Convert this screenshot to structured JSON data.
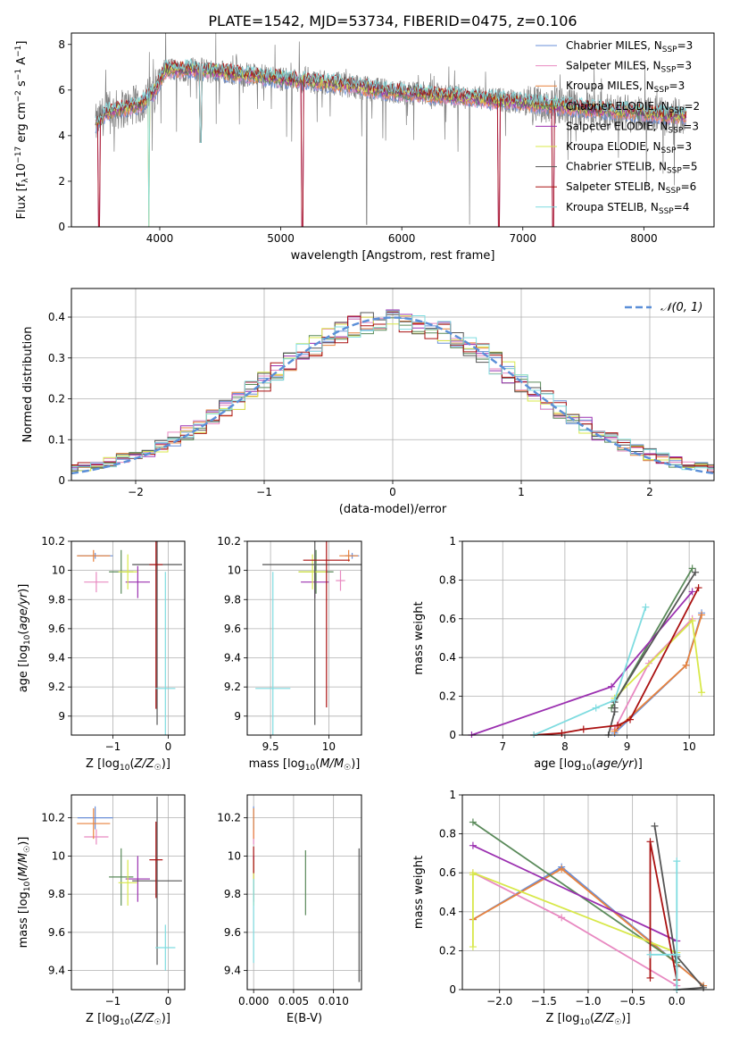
{
  "figure": {
    "title": "PLATE=1542, MJD=53734, FIBERID=0475, z=0.106"
  },
  "colors": {
    "Chabrier MILES": "#6a8fd8",
    "Salpeter MILES": "#e889c1",
    "Kroupa MILES": "#e8823c",
    "Chabrier ELODIE": "#5a8a5a",
    "Salpeter ELODIE": "#9b30b0",
    "Kroupa ELODIE": "#d8e84a",
    "Chabrier STELIB": "#555555",
    "Salpeter STELIB": "#aa1111",
    "Kroupa STELIB": "#7fdce0",
    "observed": "#808080",
    "normal": "#5b8fd8"
  },
  "chart_data": [
    {
      "id": "spectrum",
      "type": "line",
      "xlabel": "wavelength [Angstrom, rest frame]",
      "ylabel": "Flux [f_λ10^-17 erg cm^-2 s^-1 A^-1]",
      "xlim": [
        3270,
        8580
      ],
      "ylim": [
        0,
        8.5
      ],
      "xticks": [
        4000,
        5000,
        6000,
        7000,
        8000
      ],
      "yticks": [
        0,
        2,
        4,
        6,
        8
      ],
      "grid": false,
      "legend_position": "right",
      "legend": [
        {
          "name": "Chabrier MILES",
          "nssp": "3"
        },
        {
          "name": "Salpeter MILES",
          "nssp": "3"
        },
        {
          "name": "Kroupa MILES",
          "nssp": "3"
        },
        {
          "name": "Chabrier ELODIE",
          "nssp": "2"
        },
        {
          "name": "Salpeter ELODIE",
          "nssp": "3"
        },
        {
          "name": "Kroupa ELODIE",
          "nssp": "3"
        },
        {
          "name": "Chabrier STELIB",
          "nssp": "5"
        },
        {
          "name": "Salpeter STELIB",
          "nssp": "6"
        },
        {
          "name": "Kroupa STELIB",
          "nssp": "4"
        }
      ],
      "continuum": [
        [
          3480,
          4.5
        ],
        [
          3550,
          5.0
        ],
        [
          3700,
          5.2
        ],
        [
          3850,
          5.4
        ],
        [
          3950,
          5.9
        ],
        [
          4050,
          6.9
        ],
        [
          4300,
          6.9
        ],
        [
          4600,
          6.75
        ],
        [
          4900,
          6.55
        ],
        [
          5200,
          6.4
        ],
        [
          5500,
          6.25
        ],
        [
          5800,
          6.0
        ],
        [
          6100,
          5.85
        ],
        [
          6400,
          5.75
        ],
        [
          6700,
          5.6
        ],
        [
          7000,
          5.45
        ],
        [
          7300,
          5.3
        ],
        [
          7600,
          5.15
        ],
        [
          7900,
          5.05
        ],
        [
          8200,
          4.9
        ],
        [
          8350,
          4.85
        ]
      ],
      "model_dips": [
        [
          3500,
          0
        ],
        [
          3910,
          0
        ],
        [
          4340,
          3.7
        ],
        [
          5180,
          0
        ],
        [
          6800,
          0
        ],
        [
          7250,
          0
        ]
      ]
    },
    {
      "id": "residuals",
      "type": "histogram",
      "xlabel": "(data-model)/error",
      "ylabel": "Normed distribution",
      "xlim": [
        -2.5,
        2.5
      ],
      "ylim": [
        0,
        0.47
      ],
      "xticks": [
        -2,
        -1,
        0,
        1,
        2
      ],
      "yticks": [
        0.0,
        0.1,
        0.2,
        0.3,
        0.4
      ],
      "grid": true,
      "legend_position": "top-right",
      "legend": "𝒩(0, 1)",
      "bin_width": 0.1
    },
    {
      "id": "age_vs_z",
      "type": "errorbar",
      "xlabel": "Z [log10(Z/Z⊙)]",
      "ylabel": "age [log10(age/yr)]",
      "xlim": [
        -1.75,
        0.3
      ],
      "ylim": [
        8.87,
        10.2
      ],
      "xticks": [
        -1,
        0
      ],
      "yticks": [
        9.0,
        9.2,
        9.4,
        9.6,
        9.8,
        10.0,
        10.2
      ],
      "grid": true,
      "points": [
        {
          "model": "Chabrier MILES",
          "x": -1.32,
          "xe": 0.32,
          "y": 10.1,
          "ye": 0.02
        },
        {
          "model": "Salpeter MILES",
          "x": -1.3,
          "xe": 0.22,
          "y": 9.92,
          "ye": 0.07
        },
        {
          "model": "Kroupa MILES",
          "x": -1.35,
          "xe": 0.3,
          "y": 10.1,
          "ye": 0.04
        },
        {
          "model": "Chabrier ELODIE",
          "x": -0.85,
          "xe": 0.22,
          "y": 9.99,
          "ye": 0.15
        },
        {
          "model": "Salpeter ELODIE",
          "x": -0.55,
          "xe": 0.22,
          "y": 9.92,
          "ye": 0.11
        },
        {
          "model": "Kroupa ELODIE",
          "x": -0.73,
          "xe": 0.17,
          "y": 9.99,
          "ye": 0.12
        },
        {
          "model": "Chabrier STELIB",
          "x": -0.2,
          "xe": 0.45,
          "y": 10.04,
          "ye": 1.1
        },
        {
          "model": "Salpeter STELIB",
          "x": -0.22,
          "xe": 0.12,
          "y": 10.04,
          "ye": 0.99
        },
        {
          "model": "Kroupa STELIB",
          "x": -0.05,
          "xe": 0.18,
          "y": 9.19,
          "ye": 0.8
        }
      ]
    },
    {
      "id": "age_vs_mass",
      "type": "errorbar",
      "xlabel": "mass [log10(M/M⊙)]",
      "ylabel": "",
      "xlim": [
        9.3,
        10.28
      ],
      "ylim": [
        8.87,
        10.2
      ],
      "xticks": [
        9.5,
        10.0
      ],
      "yticks": [
        9.0,
        9.2,
        9.4,
        9.6,
        9.8,
        10.0,
        10.2
      ],
      "grid": true,
      "points": [
        {
          "model": "Chabrier MILES",
          "x": 10.2,
          "xe": 0.06,
          "y": 10.1,
          "ye": 0.02
        },
        {
          "model": "Salpeter MILES",
          "x": 10.1,
          "xe": 0.04,
          "y": 9.93,
          "ye": 0.07
        },
        {
          "model": "Kroupa MILES",
          "x": 10.17,
          "xe": 0.08,
          "y": 10.1,
          "ye": 0.04
        },
        {
          "model": "Chabrier ELODIE",
          "x": 9.89,
          "xe": 0.15,
          "y": 9.99,
          "ye": 0.15
        },
        {
          "model": "Salpeter ELODIE",
          "x": 9.88,
          "xe": 0.12,
          "y": 9.92,
          "ye": 0.11
        },
        {
          "model": "Kroupa ELODIE",
          "x": 9.86,
          "xe": 0.12,
          "y": 9.99,
          "ye": 0.12
        },
        {
          "model": "Chabrier STELIB",
          "x": 9.88,
          "xe": 0.45,
          "y": 10.04,
          "ye": 1.1
        },
        {
          "model": "Salpeter STELIB",
          "x": 9.98,
          "xe": 0.2,
          "y": 10.07,
          "ye": 1.01
        },
        {
          "model": "Kroupa STELIB",
          "x": 9.52,
          "xe": 0.15,
          "y": 9.19,
          "ye": 0.8
        }
      ]
    },
    {
      "id": "weight_vs_age",
      "type": "line",
      "xlabel": "age [log10(age/yr)]",
      "ylabel": "mass weight",
      "xlim": [
        6.35,
        10.4
      ],
      "ylim": [
        0,
        1.0
      ],
      "xticks": [
        7,
        8,
        9,
        10
      ],
      "yticks": [
        0.0,
        0.2,
        0.4,
        0.6,
        0.8,
        1.0
      ],
      "grid": true,
      "series": [
        {
          "model": "Chabrier MILES",
          "x": [
            8.8,
            9.95,
            10.2
          ],
          "y": [
            0.01,
            0.36,
            0.63
          ]
        },
        {
          "model": "Salpeter MILES",
          "x": [
            8.8,
            9.35,
            10.05
          ],
          "y": [
            0.03,
            0.37,
            0.6
          ]
        },
        {
          "model": "Kroupa MILES",
          "x": [
            8.8,
            9.95,
            10.2
          ],
          "y": [
            0.02,
            0.36,
            0.62
          ]
        },
        {
          "model": "Chabrier ELODIE",
          "x": [
            8.75,
            10.05
          ],
          "y": [
            0.14,
            0.86
          ]
        },
        {
          "model": "Salpeter ELODIE",
          "x": [
            6.5,
            8.75,
            10.05
          ],
          "y": [
            0.0,
            0.25,
            0.74
          ]
        },
        {
          "model": "Kroupa ELODIE",
          "x": [
            8.8,
            10.05,
            10.2
          ],
          "y": [
            0.19,
            0.59,
            0.22
          ]
        },
        {
          "model": "Chabrier STELIB",
          "x": [
            8.7,
            8.8,
            8.8,
            8.8,
            10.1
          ],
          "y": [
            0.0,
            0.12,
            0.14,
            0.17,
            0.84
          ]
        },
        {
          "model": "Salpeter STELIB",
          "x": [
            7.5,
            7.95,
            8.3,
            8.85,
            9.05,
            10.15
          ],
          "y": [
            0.0,
            0.01,
            0.03,
            0.05,
            0.08,
            0.76
          ]
        },
        {
          "model": "Kroupa STELIB",
          "x": [
            7.5,
            8.5,
            8.8,
            9.3
          ],
          "y": [
            0.0,
            0.14,
            0.18,
            0.66
          ]
        }
      ]
    },
    {
      "id": "mass_vs_z",
      "type": "errorbar",
      "xlabel": "Z [log10(Z/Z⊙)]",
      "ylabel": "mass [log10(M/M⊙)]",
      "xlim": [
        -1.75,
        0.3
      ],
      "ylim": [
        9.3,
        10.32
      ],
      "xticks": [
        -1,
        0
      ],
      "yticks": [
        9.4,
        9.6,
        9.8,
        10.0,
        10.2
      ],
      "grid": true,
      "points": [
        {
          "model": "Chabrier MILES",
          "x": -1.32,
          "xe": 0.32,
          "y": 10.2,
          "ye": 0.06
        },
        {
          "model": "Salpeter MILES",
          "x": -1.3,
          "xe": 0.22,
          "y": 10.1,
          "ye": 0.04
        },
        {
          "model": "Kroupa MILES",
          "x": -1.35,
          "xe": 0.3,
          "y": 10.17,
          "ye": 0.08
        },
        {
          "model": "Chabrier ELODIE",
          "x": -0.85,
          "xe": 0.22,
          "y": 9.89,
          "ye": 0.15
        },
        {
          "model": "Salpeter ELODIE",
          "x": -0.55,
          "xe": 0.22,
          "y": 9.88,
          "ye": 0.12
        },
        {
          "model": "Kroupa ELODIE",
          "x": -0.73,
          "xe": 0.17,
          "y": 9.86,
          "ye": 0.12
        },
        {
          "model": "Chabrier STELIB",
          "x": -0.2,
          "xe": 0.45,
          "y": 9.87,
          "ye": 0.44
        },
        {
          "model": "Salpeter STELIB",
          "x": -0.22,
          "xe": 0.12,
          "y": 9.98,
          "ye": 0.2
        },
        {
          "model": "Kroupa STELIB",
          "x": -0.05,
          "xe": 0.18,
          "y": 9.52,
          "ye": 0.12
        }
      ]
    },
    {
      "id": "mass_vs_ebv",
      "type": "errorbar",
      "xlabel": "E(B-V)",
      "ylabel": "",
      "xlim": [
        -0.0008,
        0.0135
      ],
      "ylim": [
        9.3,
        10.32
      ],
      "xticks": [
        0.0,
        0.005,
        0.01
      ],
      "tick_labels": [
        "0.000",
        "0.005",
        "0.010"
      ],
      "yticks": [
        9.4,
        9.6,
        9.8,
        10.0,
        10.2
      ],
      "grid": true,
      "points": [
        {
          "model": "Chabrier MILES",
          "x": 0.0,
          "xe": 0,
          "y": 10.2,
          "ye": 0.06
        },
        {
          "model": "Salpeter MILES",
          "x": 0.0,
          "xe": 0,
          "y": 10.1,
          "ye": 0.04
        },
        {
          "model": "Kroupa MILES",
          "x": 0.0,
          "xe": 0,
          "y": 10.17,
          "ye": 0.08
        },
        {
          "model": "Chabrier ELODIE",
          "x": 0.0065,
          "xe": 0,
          "y": 9.86,
          "ye": 0.17
        },
        {
          "model": "Salpeter ELODIE",
          "x": 0.0,
          "xe": 0,
          "y": 9.88,
          "ye": 0.12
        },
        {
          "model": "Kroupa ELODIE",
          "x": 0.0,
          "xe": 0,
          "y": 9.86,
          "ye": 0.12
        },
        {
          "model": "Chabrier STELIB",
          "x": 0.0132,
          "xe": 0,
          "y": 9.69,
          "ye": 0.35
        },
        {
          "model": "Salpeter STELIB",
          "x": 0.0,
          "xe": 0,
          "y": 9.98,
          "ye": 0.07
        },
        {
          "model": "Kroupa STELIB",
          "x": 0.0,
          "xe": 0,
          "y": 9.66,
          "ye": 0.22
        }
      ]
    },
    {
      "id": "weight_vs_z",
      "type": "line",
      "xlabel": "Z [log10(Z/Z⊙)]",
      "ylabel": "mass weight",
      "xlim": [
        -2.42,
        0.42
      ],
      "ylim": [
        0,
        1.0
      ],
      "xticks": [
        -2.0,
        -1.5,
        -1.0,
        -0.5,
        0.0
      ],
      "tick_labels": [
        "−2.0",
        "−1.5",
        "−1.0",
        "−0.5",
        "0.0"
      ],
      "yticks": [
        0.0,
        0.2,
        0.4,
        0.6,
        0.8,
        1.0
      ],
      "grid": true,
      "series": [
        {
          "model": "Chabrier MILES",
          "x": [
            -2.3,
            -1.3,
            0.3
          ],
          "y": [
            0.36,
            0.63,
            0.02
          ]
        },
        {
          "model": "Salpeter MILES",
          "x": [
            -2.3,
            -1.3,
            0.0
          ],
          "y": [
            0.6,
            0.37,
            0.02
          ]
        },
        {
          "model": "Kroupa MILES",
          "x": [
            -2.3,
            -1.3,
            0.3
          ],
          "y": [
            0.36,
            0.62,
            0.02
          ]
        },
        {
          "model": "Chabrier ELODIE",
          "x": [
            -2.3,
            0.0
          ],
          "y": [
            0.86,
            0.14
          ]
        },
        {
          "model": "Salpeter ELODIE",
          "x": [
            -2.3,
            0.0
          ],
          "y": [
            0.74,
            0.25
          ]
        },
        {
          "model": "Kroupa ELODIE",
          "x": [
            -2.3,
            -2.3,
            -2.3,
            0.0
          ],
          "y": [
            0.22,
            0.59,
            0.6,
            0.19
          ]
        },
        {
          "model": "Chabrier STELIB",
          "x": [
            -0.25,
            0.0,
            0.0,
            0.3,
            0.0
          ],
          "y": [
            0.84,
            0.12,
            0.0,
            0.01,
            0.17
          ]
        },
        {
          "model": "Salpeter STELIB",
          "x": [
            -0.3,
            -0.3,
            0.0
          ],
          "y": [
            0.06,
            0.76,
            0.05
          ]
        },
        {
          "model": "Kroupa STELIB",
          "x": [
            0.0,
            0.0,
            0.0,
            -0.3
          ],
          "y": [
            0.66,
            0.0,
            0.18,
            0.18
          ]
        }
      ]
    }
  ]
}
